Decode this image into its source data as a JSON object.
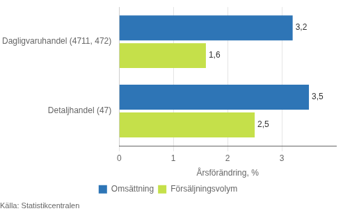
{
  "chart_data": {
    "type": "bar",
    "orientation": "horizontal",
    "categories": [
      "Dagligvaruhandel (4711, 472)",
      "Detaljhandel (47)"
    ],
    "series": [
      {
        "name": "Omsättning",
        "color": "#2E75B6",
        "values": [
          3.2,
          3.5
        ],
        "value_labels": [
          "3,2",
          "3,5"
        ]
      },
      {
        "name": "Försäljningsvolym",
        "color": "#C5E04A",
        "values": [
          1.6,
          2.5
        ],
        "value_labels": [
          "1,6",
          "2,5"
        ]
      }
    ],
    "xlabel": "Årsförändring, %",
    "annotations": [
      "Källa: Statistikcentralen"
    ],
    "xlim": [
      0,
      4.0
    ],
    "xticks": [
      0,
      1,
      2,
      3
    ],
    "grid": true,
    "legend": "bottom",
    "data_labels": true
  }
}
